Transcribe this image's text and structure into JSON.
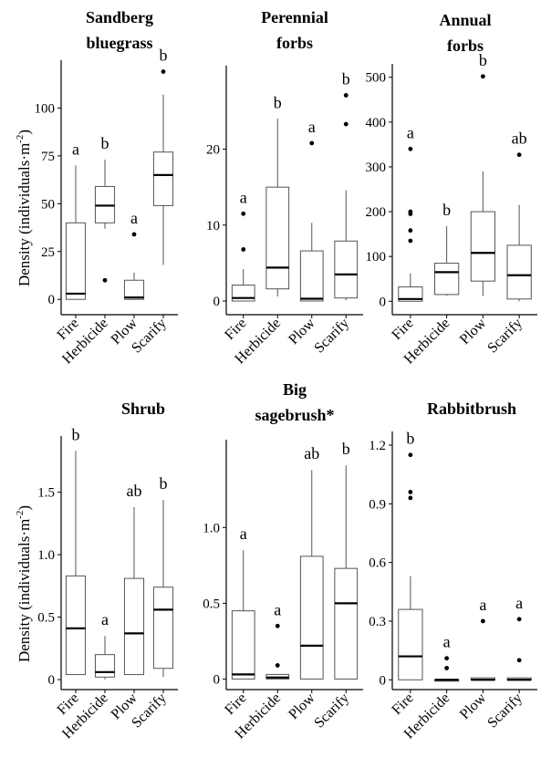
{
  "ylabel": {
    "main": "Density (individuals·m",
    "sup": "-2",
    "close": ")"
  },
  "chart_data": [
    {
      "type": "box",
      "title_lines": [
        "Sandberg",
        "bluegrass"
      ],
      "categories": [
        "Fire",
        "Herbicide",
        "Plow",
        "Scarify"
      ],
      "ylim": [
        -8,
        125
      ],
      "yticks": [
        0,
        25,
        50,
        75,
        100
      ],
      "boxes": [
        {
          "min": 0,
          "q1": 0,
          "median": 3,
          "q3": 40,
          "max": 70,
          "outliers": [],
          "letter": "a"
        },
        {
          "min": 37,
          "q1": 40,
          "median": 49,
          "q3": 59,
          "max": 73,
          "outliers": [
            10
          ],
          "letter": "b"
        },
        {
          "min": 0,
          "q1": 0,
          "median": 1,
          "q3": 10,
          "max": 14,
          "outliers": [
            34
          ],
          "letter": "a"
        },
        {
          "min": 18,
          "q1": 49,
          "median": 65,
          "q3": 77,
          "max": 107,
          "outliers": [
            119
          ],
          "letter": "b"
        }
      ]
    },
    {
      "type": "box",
      "title_lines": [
        "Perennial",
        "forbs"
      ],
      "categories": [
        "Fire",
        "Herbicide",
        "Plow",
        "Scarify"
      ],
      "ylim": [
        -1.8,
        31
      ],
      "yticks": [
        0,
        10,
        20
      ],
      "boxes": [
        {
          "min": 0,
          "q1": 0,
          "median": 0.4,
          "q3": 2.1,
          "max": 4.2,
          "outliers": [
            6.8,
            11.5
          ],
          "letter": "a"
        },
        {
          "min": 0.6,
          "q1": 1.6,
          "median": 4.4,
          "q3": 15,
          "max": 24,
          "outliers": [],
          "letter": "b"
        },
        {
          "min": 0,
          "q1": 0,
          "median": 0.3,
          "q3": 6.6,
          "max": 10.3,
          "outliers": [
            20.8
          ],
          "letter": "a"
        },
        {
          "min": 0.1,
          "q1": 0.4,
          "median": 3.5,
          "q3": 7.9,
          "max": 14.6,
          "outliers": [
            23.3,
            27.1
          ],
          "letter": "b"
        }
      ]
    },
    {
      "type": "box",
      "title_lines": [
        "Annual",
        "forbs"
      ],
      "categories": [
        "Fire",
        "Herbicide",
        "Plow",
        "Scarify"
      ],
      "ylim": [
        -30,
        530
      ],
      "yticks": [
        0,
        100,
        200,
        300,
        400,
        500
      ],
      "boxes": [
        {
          "min": 0,
          "q1": 0,
          "median": 5,
          "q3": 32,
          "max": 62,
          "outliers": [
            135,
            158,
            195,
            200,
            340
          ],
          "letter": "a"
        },
        {
          "min": 12,
          "q1": 15,
          "median": 65,
          "q3": 85,
          "max": 168,
          "outliers": [],
          "letter": "b"
        },
        {
          "min": 12,
          "q1": 45,
          "median": 108,
          "q3": 200,
          "max": 290,
          "outliers": [
            502
          ],
          "letter": "b"
        },
        {
          "min": 0,
          "q1": 5,
          "median": 58,
          "q3": 125,
          "max": 215,
          "outliers": [
            327
          ],
          "letter": "ab"
        }
      ]
    },
    {
      "type": "box",
      "title_lines": [
        "Shrub"
      ],
      "categories": [
        "Fire",
        "Herbicide",
        "Plow",
        "Scarify"
      ],
      "ylim": [
        -0.08,
        1.95
      ],
      "yticks": [
        0,
        0.5,
        1.0,
        1.5
      ],
      "ytick_labels": [
        "0",
        "0.5",
        "1.0",
        "1.5"
      ],
      "boxes": [
        {
          "min": 0.04,
          "q1": 0.04,
          "median": 0.41,
          "q3": 0.83,
          "max": 1.83,
          "outliers": [],
          "letter": "b"
        },
        {
          "min": 0,
          "q1": 0.02,
          "median": 0.06,
          "q3": 0.2,
          "max": 0.35,
          "outliers": [],
          "letter": "a"
        },
        {
          "min": 0.04,
          "q1": 0.04,
          "median": 0.37,
          "q3": 0.81,
          "max": 1.38,
          "outliers": [],
          "letter": "ab"
        },
        {
          "min": 0.02,
          "q1": 0.09,
          "median": 0.56,
          "q3": 0.74,
          "max": 1.44,
          "outliers": [],
          "letter": "b"
        }
      ]
    },
    {
      "type": "box",
      "title_lines": [
        "Big",
        "sagebrush*"
      ],
      "categories": [
        "Fire",
        "Herbicide",
        "Plow",
        "Scarify"
      ],
      "ylim": [
        -0.07,
        1.58
      ],
      "yticks": [
        0,
        0.5,
        1.0
      ],
      "ytick_labels": [
        "0",
        "0.5",
        "1.0"
      ],
      "boxes": [
        {
          "min": 0,
          "q1": 0,
          "median": 0.03,
          "q3": 0.45,
          "max": 0.85,
          "outliers": [],
          "letter": "a"
        },
        {
          "min": 0,
          "q1": 0,
          "median": 0.01,
          "q3": 0.03,
          "max": 0.03,
          "outliers": [
            0.09,
            0.35
          ],
          "letter": "a"
        },
        {
          "min": 0,
          "q1": 0,
          "median": 0.22,
          "q3": 0.81,
          "max": 1.38,
          "outliers": [],
          "letter": "ab"
        },
        {
          "min": 0,
          "q1": 0,
          "median": 0.5,
          "q3": 0.73,
          "max": 1.41,
          "outliers": [],
          "letter": "b"
        }
      ]
    },
    {
      "type": "box",
      "title_lines": [
        "Rabbitbrush"
      ],
      "categories": [
        "Fire",
        "Herbicide",
        "Plow",
        "Scarify"
      ],
      "ylim": [
        -0.05,
        1.27
      ],
      "yticks": [
        0,
        0.3,
        0.6,
        0.9,
        1.2
      ],
      "ytick_labels": [
        "0",
        "0.3",
        "0.6",
        "0.9",
        "1.2"
      ],
      "boxes": [
        {
          "min": 0,
          "q1": 0,
          "median": 0.12,
          "q3": 0.36,
          "max": 0.53,
          "outliers": [
            0.93,
            0.96,
            1.15
          ],
          "letter": "b"
        },
        {
          "min": 0,
          "q1": 0,
          "median": 0,
          "q3": 0,
          "max": 0,
          "outliers": [
            0.06,
            0.11
          ],
          "letter": "a"
        },
        {
          "min": 0,
          "q1": 0,
          "median": 0,
          "q3": 0.01,
          "max": 0.01,
          "outliers": [
            0.3
          ],
          "letter": "a"
        },
        {
          "min": 0,
          "q1": 0,
          "median": 0,
          "q3": 0.01,
          "max": 0.01,
          "outliers": [
            0.1,
            0.31
          ],
          "letter": "a"
        }
      ]
    }
  ]
}
